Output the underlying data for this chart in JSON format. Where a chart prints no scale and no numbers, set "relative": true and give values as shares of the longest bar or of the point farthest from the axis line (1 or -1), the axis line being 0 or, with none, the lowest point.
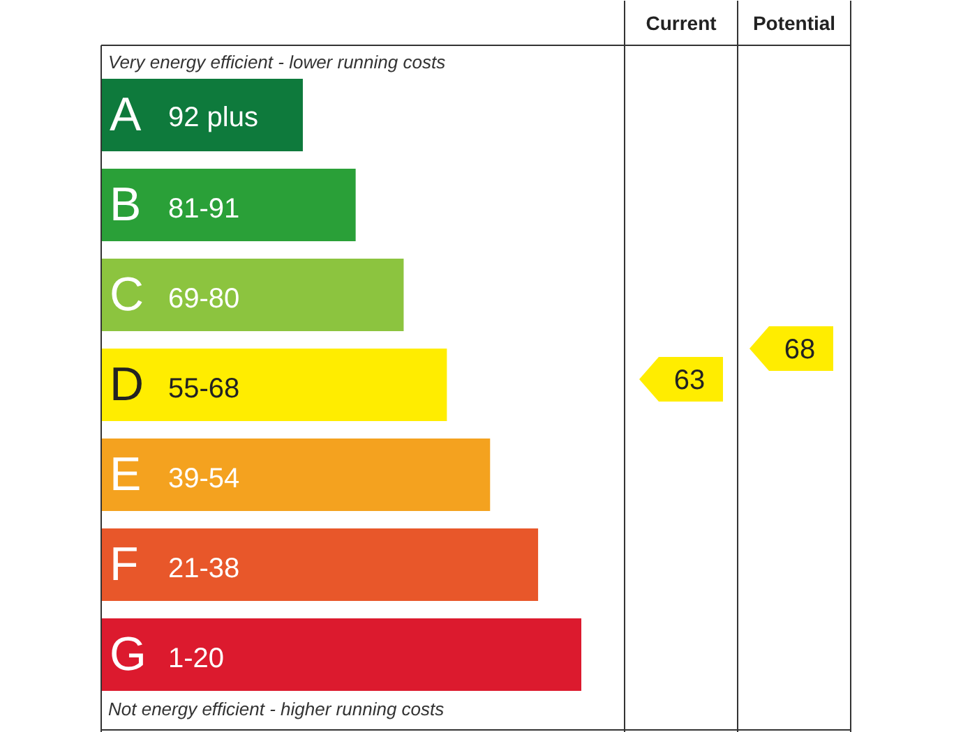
{
  "chart_data": {
    "type": "bar",
    "orientation": "horizontal",
    "relative": true,
    "categories": [
      "A",
      "B",
      "C",
      "D",
      "E",
      "F",
      "G"
    ],
    "values": [
      0.42,
      0.53,
      0.63,
      0.72,
      0.81,
      0.91,
      1
    ],
    "colors": [
      "#0e7a3c",
      "#2aa038",
      "#8cc43f",
      "#ffed00",
      "#f4a21f",
      "#e8572a",
      "#dc1a2e"
    ],
    "legend_title": "Current",
    "annotations": [
      "Very energy efficient - lower running costs",
      "Not energy efficient - higher running costs",
      "Potential",
      "63",
      "68",
      "92 plus",
      "81-91",
      "69-80",
      "55-68",
      "39-54",
      "21-38",
      "1-20"
    ],
    "grid": false
  }
}
